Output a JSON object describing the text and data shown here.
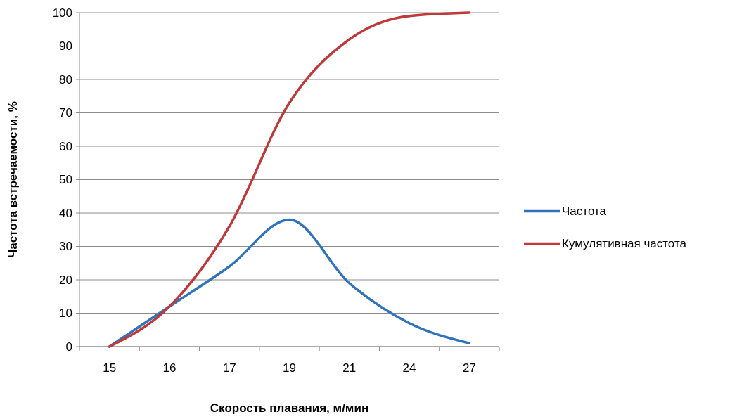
{
  "chart_data": {
    "type": "line",
    "xlabel": "Скорость плавания, м/мин",
    "ylabel": "Частота встречаемости, %",
    "categories": [
      "15",
      "16",
      "17",
      "19",
      "21",
      "24",
      "27"
    ],
    "series": [
      {
        "name": "Частота",
        "color": "#2f72bd",
        "values": [
          0,
          12,
          24,
          38,
          19,
          7,
          1
        ]
      },
      {
        "name": "Кумулятивная частота",
        "color": "#c0393a",
        "values": [
          0,
          12,
          36,
          73,
          92,
          99,
          100
        ]
      }
    ],
    "ylim": [
      0,
      100
    ],
    "yticks": [
      0,
      10,
      20,
      30,
      40,
      50,
      60,
      70,
      80,
      90,
      100
    ],
    "grid": "y",
    "legend": "right",
    "marker": "none",
    "line_style": "solid"
  }
}
